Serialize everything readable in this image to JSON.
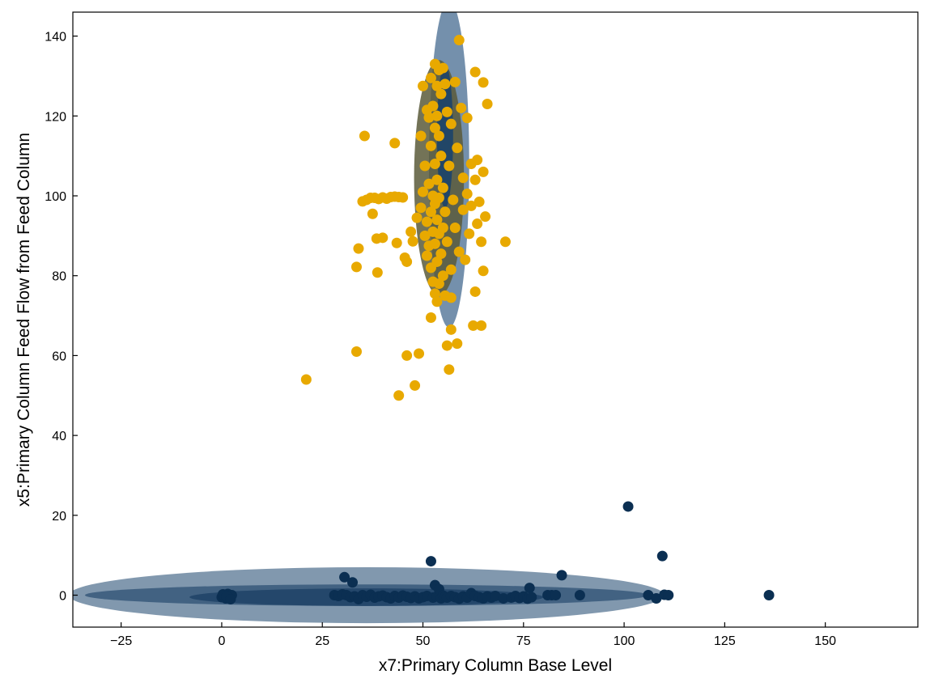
{
  "chart_data": {
    "type": "scatter",
    "title": "",
    "xlabel": "x7:Primary Column Base Level",
    "ylabel": "x5:Primary Column Feed Flow from Feed Column",
    "xlim": [
      -37,
      173
    ],
    "ylim": [
      -8,
      146
    ],
    "xticks": [
      -25,
      0,
      25,
      50,
      75,
      100,
      125,
      150
    ],
    "yticks": [
      0,
      20,
      40,
      60,
      80,
      100,
      120,
      140
    ],
    "grid": false,
    "legend": "none",
    "colors": {
      "cluster_low": "#0b2f52",
      "cluster_high": "#e8a900",
      "ellipse_low_outer": "#7a92aa",
      "ellipse_low_mid": "#3e5f80",
      "ellipse_low_inner": "#234669",
      "ellipse_high_outer": "#6d8aa8",
      "ellipse_high_mid": "#5a5a3a",
      "ellipse_high_inner": "#1f4468"
    },
    "ellipses": [
      {
        "series": "low",
        "level": "outer",
        "cx": 36,
        "cy": 0,
        "rx": 74,
        "ry": 7
      },
      {
        "series": "low",
        "level": "mid",
        "cx": 36,
        "cy": 0,
        "rx": 70,
        "ry": 2.7
      },
      {
        "series": "low",
        "level": "inner",
        "cx": 36,
        "cy": -0.5,
        "rx": 44,
        "ry": 2.2
      },
      {
        "series": "high",
        "level": "outer",
        "cx": 56.5,
        "cy": 108,
        "rx": 5,
        "ry": 41
      },
      {
        "series": "high",
        "level": "mid",
        "cx": 54,
        "cy": 104.5,
        "rx": 6.2,
        "ry": 29.5
      },
      {
        "series": "high",
        "level": "inner",
        "cx": 55.5,
        "cy": 115,
        "rx": 2,
        "ry": 18
      }
    ],
    "series": [
      {
        "key": "low",
        "points": [
          [
            0,
            -0.5
          ],
          [
            0.5,
            0
          ],
          [
            1,
            -0.8
          ],
          [
            1.5,
            0.3
          ],
          [
            2,
            -0.5
          ],
          [
            2.5,
            0
          ],
          [
            0.3,
            0.2
          ],
          [
            1.2,
            -0.3
          ],
          [
            2.2,
            -1
          ],
          [
            28,
            0
          ],
          [
            29,
            -0.2
          ],
          [
            30,
            0.2
          ],
          [
            30.5,
            4.5
          ],
          [
            31,
            0
          ],
          [
            32,
            -0.5
          ],
          [
            32.5,
            3.2
          ],
          [
            33,
            -0.3
          ],
          [
            34,
            -1
          ],
          [
            35,
            0
          ],
          [
            36,
            -0.4
          ],
          [
            37,
            0.1
          ],
          [
            38,
            -0.6
          ],
          [
            39,
            -0.3
          ],
          [
            40,
            -0.1
          ],
          [
            41,
            -0.5
          ],
          [
            42,
            -0.8
          ],
          [
            43,
            -0.2
          ],
          [
            44,
            -0.6
          ],
          [
            45,
            -0.1
          ],
          [
            46,
            -0.4
          ],
          [
            47,
            -0.7
          ],
          [
            48,
            -0.3
          ],
          [
            49,
            -0.8
          ],
          [
            50,
            -0.5
          ],
          [
            51,
            -0.2
          ],
          [
            52,
            8.5
          ],
          [
            52.5,
            -0.6
          ],
          [
            53,
            2.5
          ],
          [
            53.5,
            -0.3
          ],
          [
            54,
            1.5
          ],
          [
            54.5,
            -0.8
          ],
          [
            55,
            -0.1
          ],
          [
            55.5,
            -0.4
          ],
          [
            56,
            -0.6
          ],
          [
            57,
            -0.2
          ],
          [
            58,
            -0.5
          ],
          [
            59,
            -0.9
          ],
          [
            60,
            -0.3
          ],
          [
            61,
            -0.6
          ],
          [
            62,
            0.5
          ],
          [
            63,
            -0.2
          ],
          [
            64,
            -0.5
          ],
          [
            65,
            -0.8
          ],
          [
            66,
            -0.3
          ],
          [
            67,
            -0.6
          ],
          [
            68,
            -0.2
          ],
          [
            70,
            -0.8
          ],
          [
            72,
            -0.6
          ],
          [
            73,
            -0.2
          ],
          [
            74,
            -0.7
          ],
          [
            75,
            -0.3
          ],
          [
            76,
            -0.9
          ],
          [
            76.5,
            1.8
          ],
          [
            77,
            -0.5
          ],
          [
            81,
            0
          ],
          [
            82,
            0
          ],
          [
            83,
            0
          ],
          [
            84.5,
            5
          ],
          [
            89,
            0
          ],
          [
            101,
            22.2
          ],
          [
            106,
            0
          ],
          [
            108,
            -0.8
          ],
          [
            109.5,
            9.8
          ],
          [
            110,
            0.1
          ],
          [
            111,
            0
          ],
          [
            136,
            0
          ]
        ]
      },
      {
        "key": "high",
        "points": [
          [
            21,
            54
          ],
          [
            33.5,
            61
          ],
          [
            33.5,
            82.2
          ],
          [
            34,
            86.8
          ],
          [
            35,
            98.6
          ],
          [
            35.5,
            115
          ],
          [
            36,
            99
          ],
          [
            37,
            99.5
          ],
          [
            37.5,
            95.5
          ],
          [
            38,
            99.5
          ],
          [
            38.5,
            89.3
          ],
          [
            38.7,
            80.8
          ],
          [
            39,
            99.2
          ],
          [
            40,
            99.6
          ],
          [
            40,
            89.5
          ],
          [
            41,
            99.3
          ],
          [
            42,
            99.7
          ],
          [
            43,
            113.2
          ],
          [
            43,
            99.8
          ],
          [
            43.5,
            88.2
          ],
          [
            44,
            50
          ],
          [
            44,
            99.7
          ],
          [
            45,
            99.6
          ],
          [
            45.5,
            84.5
          ],
          [
            46,
            60
          ],
          [
            46,
            83.5
          ],
          [
            47,
            91
          ],
          [
            47.5,
            88.6
          ],
          [
            48,
            52.5
          ],
          [
            48.5,
            94.5
          ],
          [
            49,
            60.5
          ],
          [
            49.5,
            97
          ],
          [
            49.5,
            115
          ],
          [
            50,
            127.5
          ],
          [
            50,
            101
          ],
          [
            50.5,
            107.5
          ],
          [
            50.5,
            90
          ],
          [
            51,
            121.5
          ],
          [
            51,
            93.5
          ],
          [
            51,
            85
          ],
          [
            51.5,
            119.6
          ],
          [
            51.5,
            103
          ],
          [
            51.5,
            87.5
          ],
          [
            52,
            129.5
          ],
          [
            52,
            112.5
          ],
          [
            52,
            96
          ],
          [
            52,
            82
          ],
          [
            52,
            69.5
          ],
          [
            52.5,
            122.5
          ],
          [
            52.5,
            100
          ],
          [
            52.5,
            91
          ],
          [
            52.5,
            78.5
          ],
          [
            53,
            133
          ],
          [
            53,
            117
          ],
          [
            53,
            108
          ],
          [
            53,
            98
          ],
          [
            53,
            88
          ],
          [
            53,
            75.5
          ],
          [
            53.5,
            127.5
          ],
          [
            53.5,
            120
          ],
          [
            53.5,
            104
          ],
          [
            53.5,
            94
          ],
          [
            53.5,
            83.5
          ],
          [
            53.5,
            73.5
          ],
          [
            54,
            131.5
          ],
          [
            54,
            115
          ],
          [
            54,
            99.5
          ],
          [
            54,
            90.5
          ],
          [
            54,
            78
          ],
          [
            54.5,
            125.5
          ],
          [
            54.5,
            110
          ],
          [
            54.5,
            85.5
          ],
          [
            55,
            132
          ],
          [
            55,
            102
          ],
          [
            55,
            92
          ],
          [
            55,
            80
          ],
          [
            55.5,
            128
          ],
          [
            55.5,
            96
          ],
          [
            55.5,
            75
          ],
          [
            56,
            62.5
          ],
          [
            56,
            121
          ],
          [
            56,
            88.5
          ],
          [
            56.5,
            56.5
          ],
          [
            56.5,
            107.5
          ],
          [
            57,
            66.5
          ],
          [
            57,
            118
          ],
          [
            57,
            81.5
          ],
          [
            57,
            74.5
          ],
          [
            57.5,
            99
          ],
          [
            58,
            128.5
          ],
          [
            58,
            92
          ],
          [
            58.5,
            63
          ],
          [
            58.5,
            112
          ],
          [
            59,
            139
          ],
          [
            59,
            86
          ],
          [
            59.5,
            122
          ],
          [
            60,
            104.5
          ],
          [
            60,
            96.5
          ],
          [
            60.5,
            84
          ],
          [
            61,
            119.5
          ],
          [
            61,
            100.5
          ],
          [
            61.5,
            90.5
          ],
          [
            62,
            108
          ],
          [
            62,
            97.5
          ],
          [
            62.5,
            67.5
          ],
          [
            63,
            131
          ],
          [
            63,
            76
          ],
          [
            63,
            104
          ],
          [
            63.5,
            109
          ],
          [
            63.5,
            93
          ],
          [
            64,
            98.5
          ],
          [
            64.5,
            67.5
          ],
          [
            64.5,
            88.5
          ],
          [
            65,
            106
          ],
          [
            65,
            81.2
          ],
          [
            65,
            128.4
          ],
          [
            65.5,
            94.8
          ],
          [
            66,
            123
          ],
          [
            70.5,
            88.5
          ]
        ]
      }
    ]
  }
}
